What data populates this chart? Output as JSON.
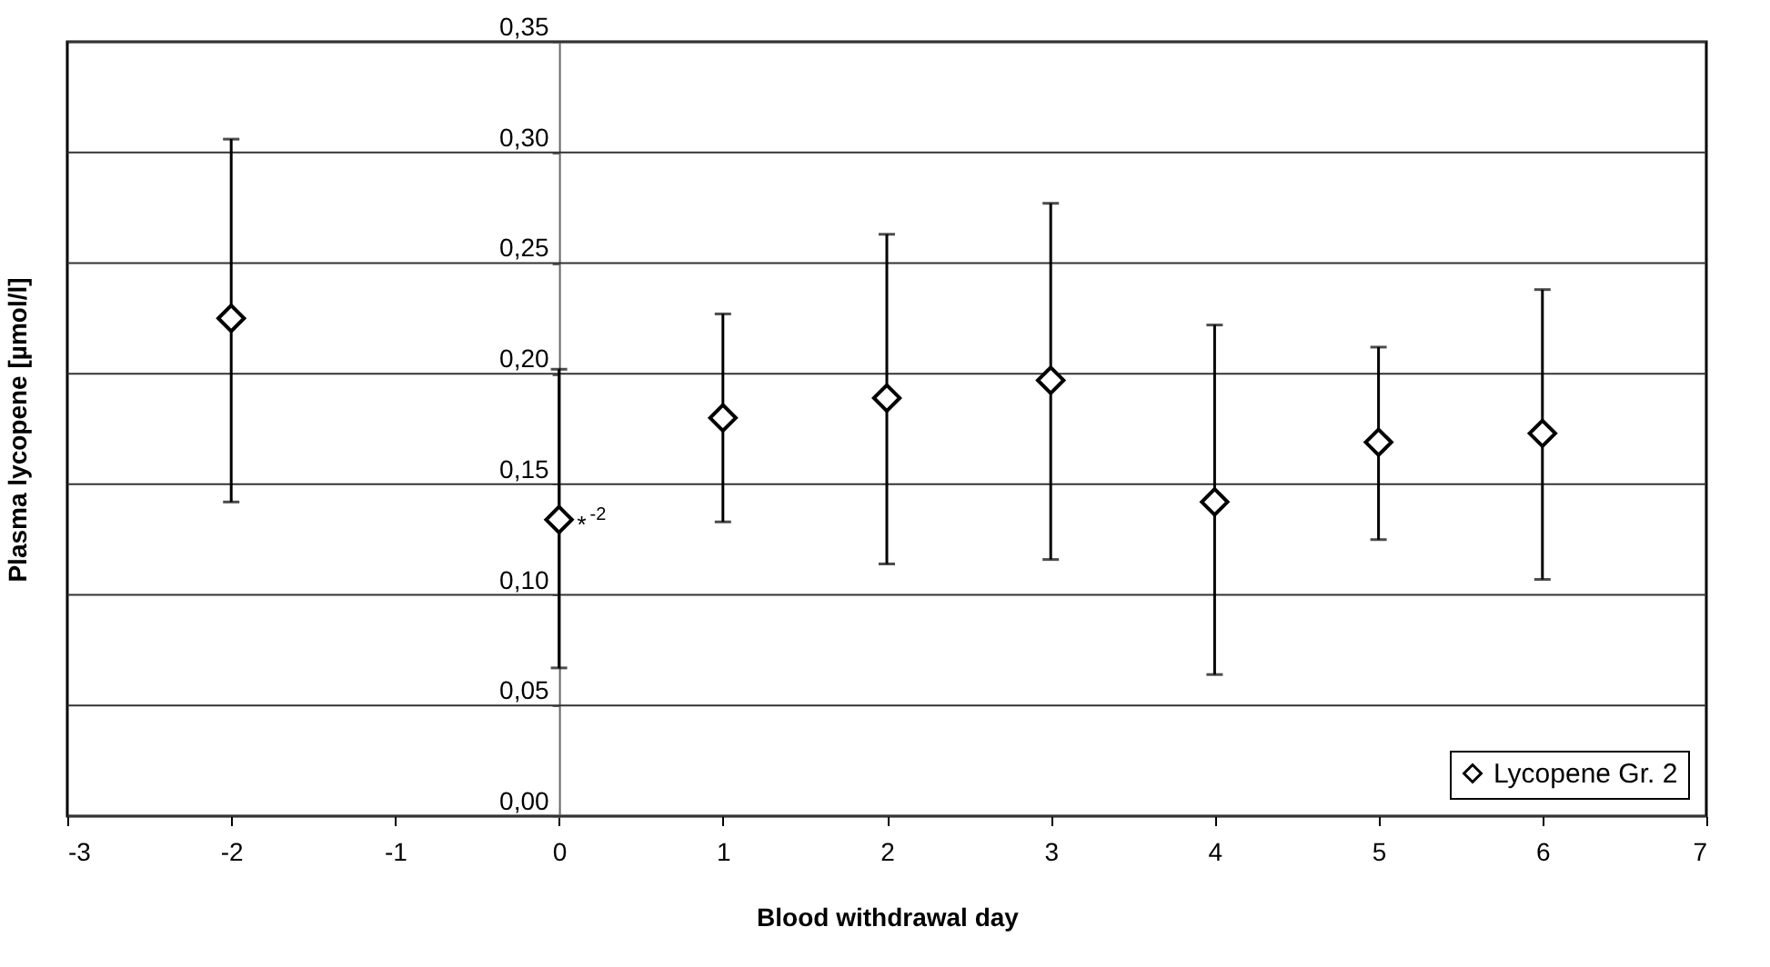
{
  "chart_data": {
    "type": "scatter",
    "xlabel": "Blood withdrawal day",
    "ylabel": "Plasma lycopene [µmol/l]",
    "x": [
      -2,
      0,
      1,
      2,
      3,
      4,
      5,
      6
    ],
    "series": [
      {
        "name": "Lycopene Gr. 2",
        "color": "#000000",
        "values": [
          0.225,
          0.134,
          0.18,
          0.189,
          0.197,
          0.142,
          0.169,
          0.173
        ],
        "errors": [
          [
            0.142,
            0.306
          ],
          [
            0.067,
            0.202
          ],
          [
            0.133,
            0.227
          ],
          [
            0.114,
            0.263
          ],
          [
            0.116,
            0.277
          ],
          [
            0.064,
            0.222
          ],
          [
            0.125,
            0.212
          ],
          [
            0.107,
            0.238
          ]
        ]
      }
    ],
    "xlim": [
      -3,
      7
    ],
    "xticks": [
      -3,
      -2,
      -1,
      0,
      1,
      2,
      3,
      4,
      5,
      6,
      7
    ],
    "ylim": [
      0,
      0.35
    ],
    "yticks": [
      {
        "value": 0,
        "label": "0,00"
      },
      {
        "value": 0.05,
        "label": "0,05"
      },
      {
        "value": 0.1,
        "label": "0,10"
      },
      {
        "value": 0.15,
        "label": "0,15"
      },
      {
        "value": 0.2,
        "label": "0,20"
      },
      {
        "value": 0.25,
        "label": "0,25"
      },
      {
        "value": 0.3,
        "label": "0,30"
      },
      {
        "value": 0.35,
        "label": "0,35"
      }
    ],
    "grid": "y",
    "legend": "bottom right",
    "marker": "diamond",
    "annotations": [
      {
        "text": "*$^{-2}$",
        "x": 0,
        "y": 0.134
      }
    ]
  }
}
